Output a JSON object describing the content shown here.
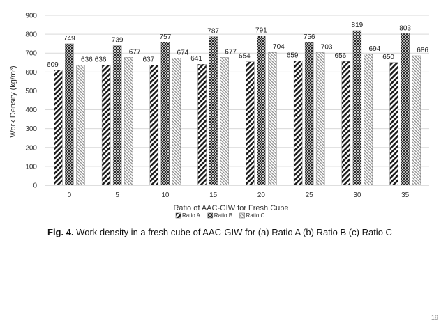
{
  "chart_data": {
    "type": "bar",
    "title": "",
    "xlabel": "Ratio of AAC-GIW for Fresh Cube",
    "ylabel_main": "Work Density (kg/m",
    "ylabel_sup": "3",
    "ylabel_close": ")",
    "ylim": [
      0,
      900
    ],
    "yticks": [
      0,
      100,
      200,
      300,
      400,
      500,
      600,
      700,
      800,
      900
    ],
    "grid": true,
    "legend_position": "bottom-center",
    "categories": [
      "0",
      "5",
      "10",
      "15",
      "20",
      "25",
      "30",
      "35"
    ],
    "series": [
      {
        "name": "Ratio A",
        "pattern": "diagonal-stripes",
        "values": [
          609,
          636,
          637,
          641,
          654,
          659,
          656,
          650
        ]
      },
      {
        "name": "Ratio B",
        "pattern": "dots",
        "values": [
          749,
          739,
          757,
          787,
          791,
          756,
          819,
          803
        ]
      },
      {
        "name": "Ratio C",
        "pattern": "fine-lines",
        "values": [
          636,
          677,
          674,
          677,
          704,
          703,
          694,
          686
        ]
      }
    ]
  },
  "caption": {
    "label": "Fig. 4.",
    "text": " Work density in a fresh cube of AAC-GIW for (a) Ratio A (b) Ratio B (c) Ratio C"
  },
  "page_number": "19"
}
